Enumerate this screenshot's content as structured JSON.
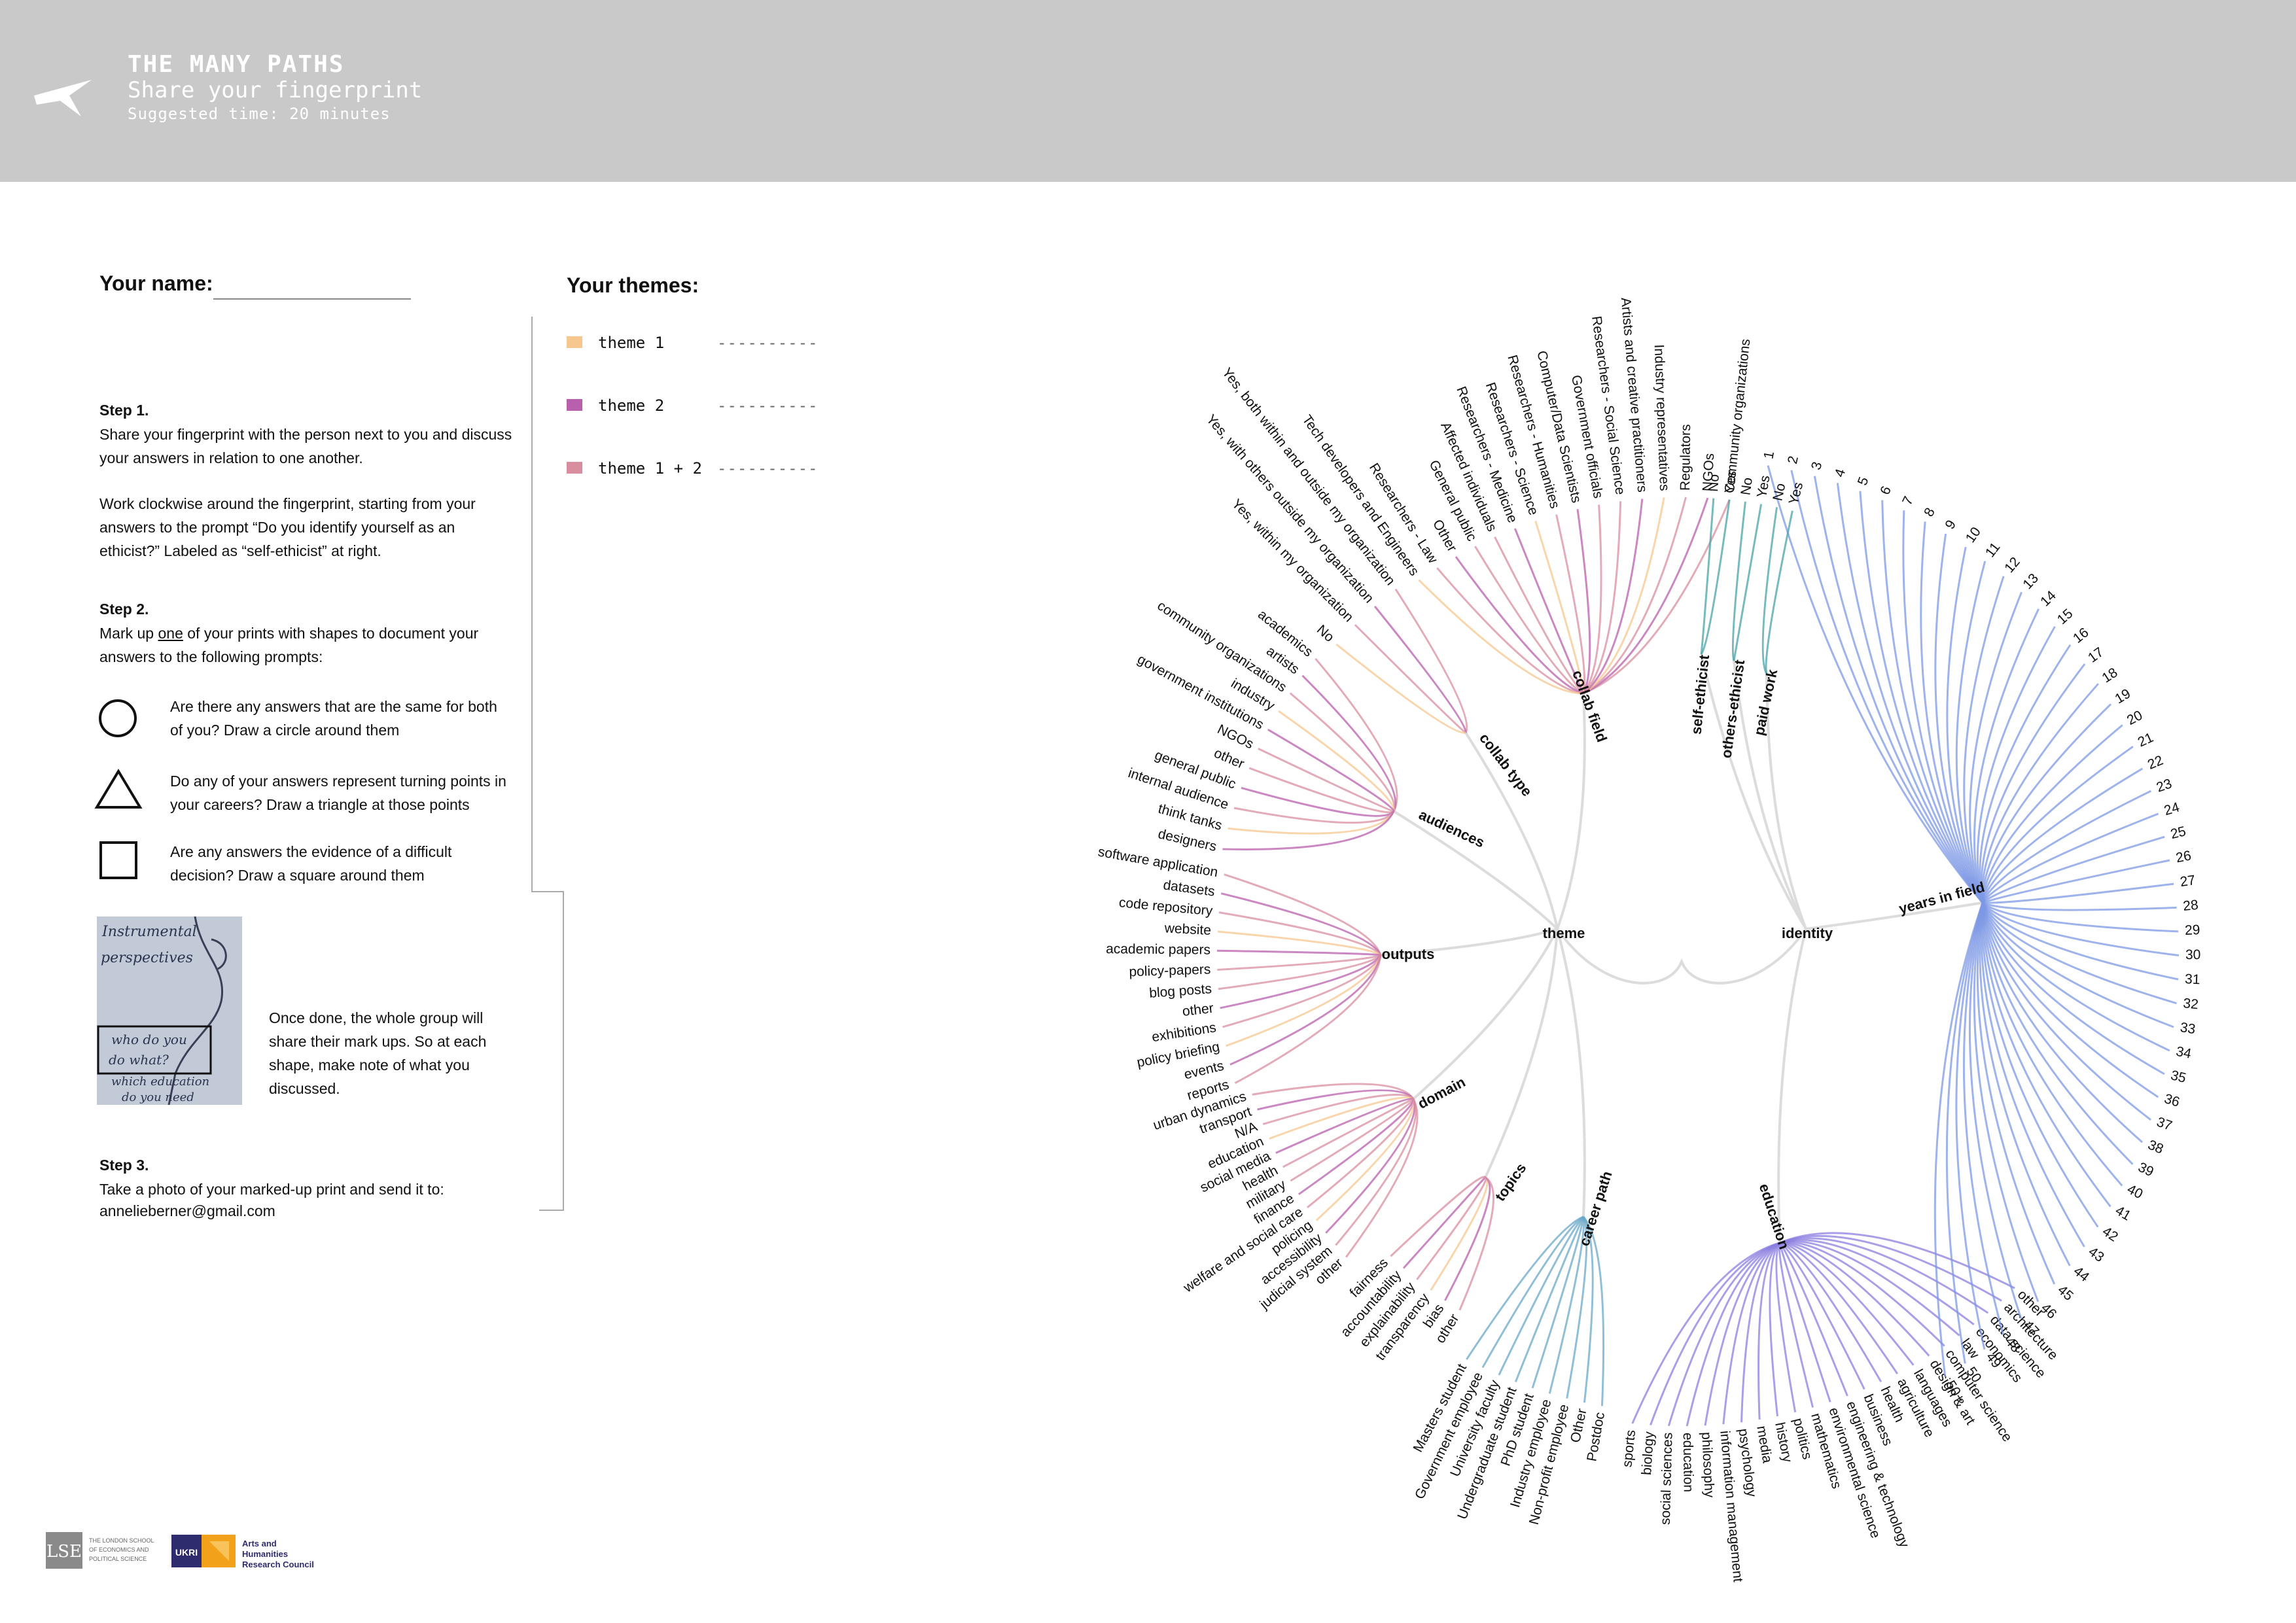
{
  "header": {
    "title": "THE MANY PATHS",
    "subtitle": "Share your fingerprint",
    "time": "Suggested time: 20 minutes",
    "plane_icon": "paper-plane-icon"
  },
  "name_label": "Your name:",
  "themes": {
    "label": "Your themes:",
    "dash": "----------",
    "items": [
      {
        "label": "theme 1",
        "color": "#f6c78f"
      },
      {
        "label": "theme 2",
        "color": "#b85fae"
      },
      {
        "label": "theme 1 + 2",
        "color": "#d98ea0"
      }
    ]
  },
  "step1": {
    "title": "Step 1.",
    "text1": "Share your fingerprint with the person next to you and discuss your answers in relation to one another.",
    "text2": "Work clockwise around the fingerprint, starting from your answers to the prompt “Do you identify yourself as an ethicist?” Labeled as “self-ethicist” at right."
  },
  "step2": {
    "title": "Step 2.",
    "text_a": "Mark up ",
    "text_u": "one",
    "text_b": " of your prints with shapes to document your answers to the following prompts:",
    "prompts": [
      {
        "icon": "circle-icon",
        "text": "Are there any answers that are the same for both of you? Draw a circle around them"
      },
      {
        "icon": "triangle-icon",
        "text": "Do any of your answers represent turning points in your careers? Draw a triangle at those points"
      },
      {
        "icon": "square-icon",
        "text": "Are any answers the evidence of a difficult decision? Draw a square around them"
      }
    ],
    "photo_notes": [
      "Instrumental",
      "perspectives",
      "who do you",
      "do what?",
      "which education",
      "do you need"
    ],
    "done": "Once done, the whole group will share their mark ups.  So at each shape, make note of what you discussed."
  },
  "step3": {
    "title": "Step 3.",
    "text": "Take a photo of your marked-up print and send it to:",
    "email": "annelieberner@gmail.com"
  },
  "logos": {
    "lse": "LSE",
    "lse_text": [
      "THE LONDON SCHOOL",
      "OF ECONOMICS AND",
      "POLITICAL SCIENCE"
    ],
    "ukri": "UKRI",
    "ahrc": [
      "Arts and",
      "Humanities",
      "Research Council"
    ]
  },
  "fingerprint": {
    "colors": {
      "theme1": "#f6c78f",
      "theme2": "#b85fae",
      "both": "#d98ea0",
      "identity": "#4aa3a8",
      "years": "#7d98e6",
      "education": "#8b7fe0",
      "career": "#6aa8c8",
      "stem": "#dcdcdc"
    },
    "hubs": {
      "theme": "theme",
      "identity": "identity",
      "collab_field": "collab field",
      "collab_type": "collab type",
      "audiences": "audiences",
      "outputs": "outputs",
      "domain": "domain",
      "topics": "topics",
      "career_path": "career path",
      "education": "education",
      "years_in_field": "years in field",
      "self_ethicist": "self-ethicist",
      "others_ethicist": "others-ethicist",
      "paid_work": "paid work"
    },
    "collab_field": [
      "Community organizations",
      "NGOs",
      "Regulators",
      "Industry representatives",
      "Artists and creative practitioners",
      "Researchers - Social Science",
      "Government officials",
      "Computer/Data Scientists",
      "Researchers - Humanities",
      "Researchers - Science",
      "Researchers - Medicine",
      "Affected individuals",
      "General public",
      "Other",
      "Researchers - Law",
      "Tech developers and Engineers"
    ],
    "collab_type": [
      "Yes, both within and outside my organization",
      "Yes, with others outside my organization",
      "Yes, within my organization",
      "No"
    ],
    "audiences": [
      "academics",
      "artists",
      "community organizations",
      "industry",
      "government institutions",
      "NGOs",
      "other",
      "general public",
      "internal audience",
      "think tanks",
      "designers"
    ],
    "outputs": [
      "software application",
      "datasets",
      "code repository",
      "website",
      "academic papers",
      "policy-papers",
      "blog posts",
      "other",
      "exhibitions",
      "policy briefing",
      "events",
      "reports"
    ],
    "domain": [
      "urban dynamics",
      "transport",
      "N/A",
      "education",
      "social media",
      "health",
      "military",
      "finance",
      "welfare and social care",
      "policing",
      "accessibility",
      "judicial system",
      "other"
    ],
    "topics": [
      "fairness",
      "accountability",
      "explainability",
      "transparency",
      "bias",
      "other"
    ],
    "career_path": [
      "Masters student",
      "Government employee",
      "University faculty",
      "Undergraduate student",
      "PhD student",
      "Industry employee",
      "Non-profit employee",
      "Other",
      "Postdoc"
    ],
    "education": [
      "sports",
      "biology",
      "social sciences",
      "education",
      "philosophy",
      "information management",
      "psychology",
      "media",
      "history",
      "politics",
      "mathematics",
      "environmental science",
      "engineering & technology",
      "business",
      "health",
      "agriculture",
      "languages",
      "design & art",
      "computer science",
      "law",
      "economics",
      "data science",
      "architecture",
      "other"
    ],
    "years": [
      "1",
      "2",
      "3",
      "4",
      "5",
      "6",
      "7",
      "8",
      "9",
      "10",
      "11",
      "12",
      "13",
      "14",
      "15",
      "16",
      "17",
      "18",
      "19",
      "20",
      "21",
      "22",
      "23",
      "24",
      "25",
      "26",
      "27",
      "28",
      "29",
      "30",
      "31",
      "32",
      "33",
      "34",
      "35",
      "36",
      "37",
      "38",
      "39",
      "40",
      "41",
      "42",
      "43",
      "44",
      "45",
      "46",
      "47",
      "48",
      "49",
      "50",
      "50+"
    ],
    "self_ethicist": [
      "No",
      "Yes"
    ],
    "others_ethicist": [
      "No",
      "Yes"
    ],
    "paid_work": [
      "No",
      "Yes"
    ]
  }
}
